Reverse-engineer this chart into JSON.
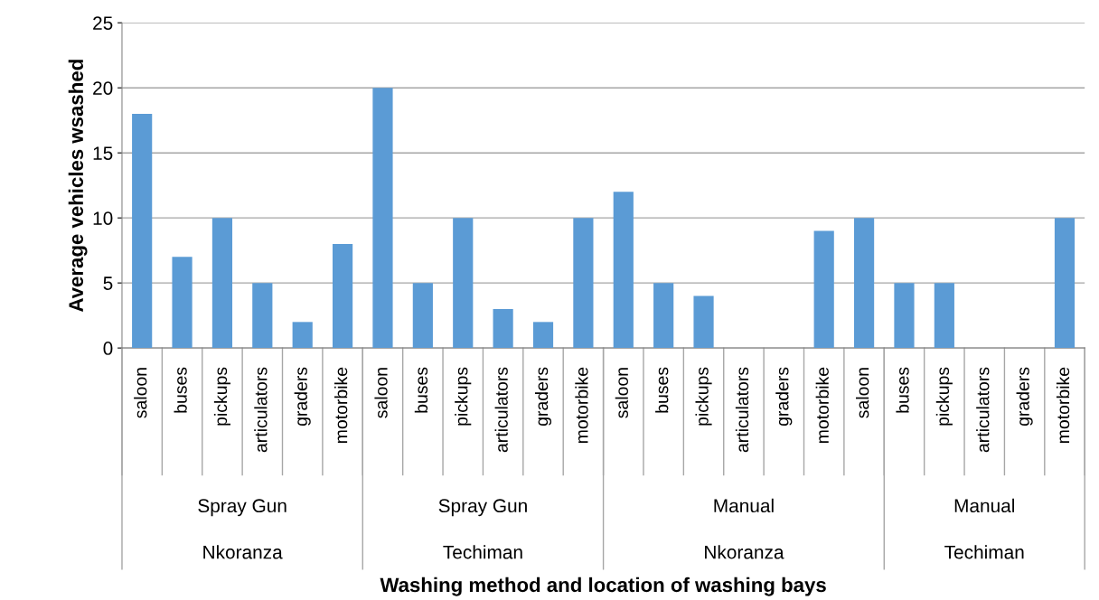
{
  "chart_data": {
    "type": "bar",
    "ylabel": "Average vehicles wsashed",
    "categories": [
      "saloon",
      "buses",
      "pickups",
      "articulators",
      "graders",
      "motorbike",
      "saloon",
      "buses",
      "pickups",
      "articulators",
      "graders",
      "motorbike",
      "saloon",
      "buses",
      "pickups",
      "articulators",
      "graders",
      "motorbike",
      "saloon",
      "buses",
      "pickups",
      "articulators",
      "graders",
      "motorbike"
    ],
    "values": [
      18,
      7,
      10,
      5,
      2,
      8,
      20,
      5,
      10,
      3,
      2,
      10,
      12,
      5,
      4,
      0,
      0,
      9,
      10,
      5,
      5,
      0,
      0,
      10
    ],
    "color": "#5b9bd5",
    "ylim": [
      0,
      25
    ],
    "yticks": [
      0,
      5,
      10,
      15,
      20,
      25
    ],
    "grid": "y",
    "annotations": [
      "Spray Gun",
      "Nkoranza",
      "Spray Gun",
      "Techiman",
      "Manual",
      "Nkoranza",
      "Manual",
      "Techiman",
      "Washing method and location of washing bays"
    ]
  }
}
